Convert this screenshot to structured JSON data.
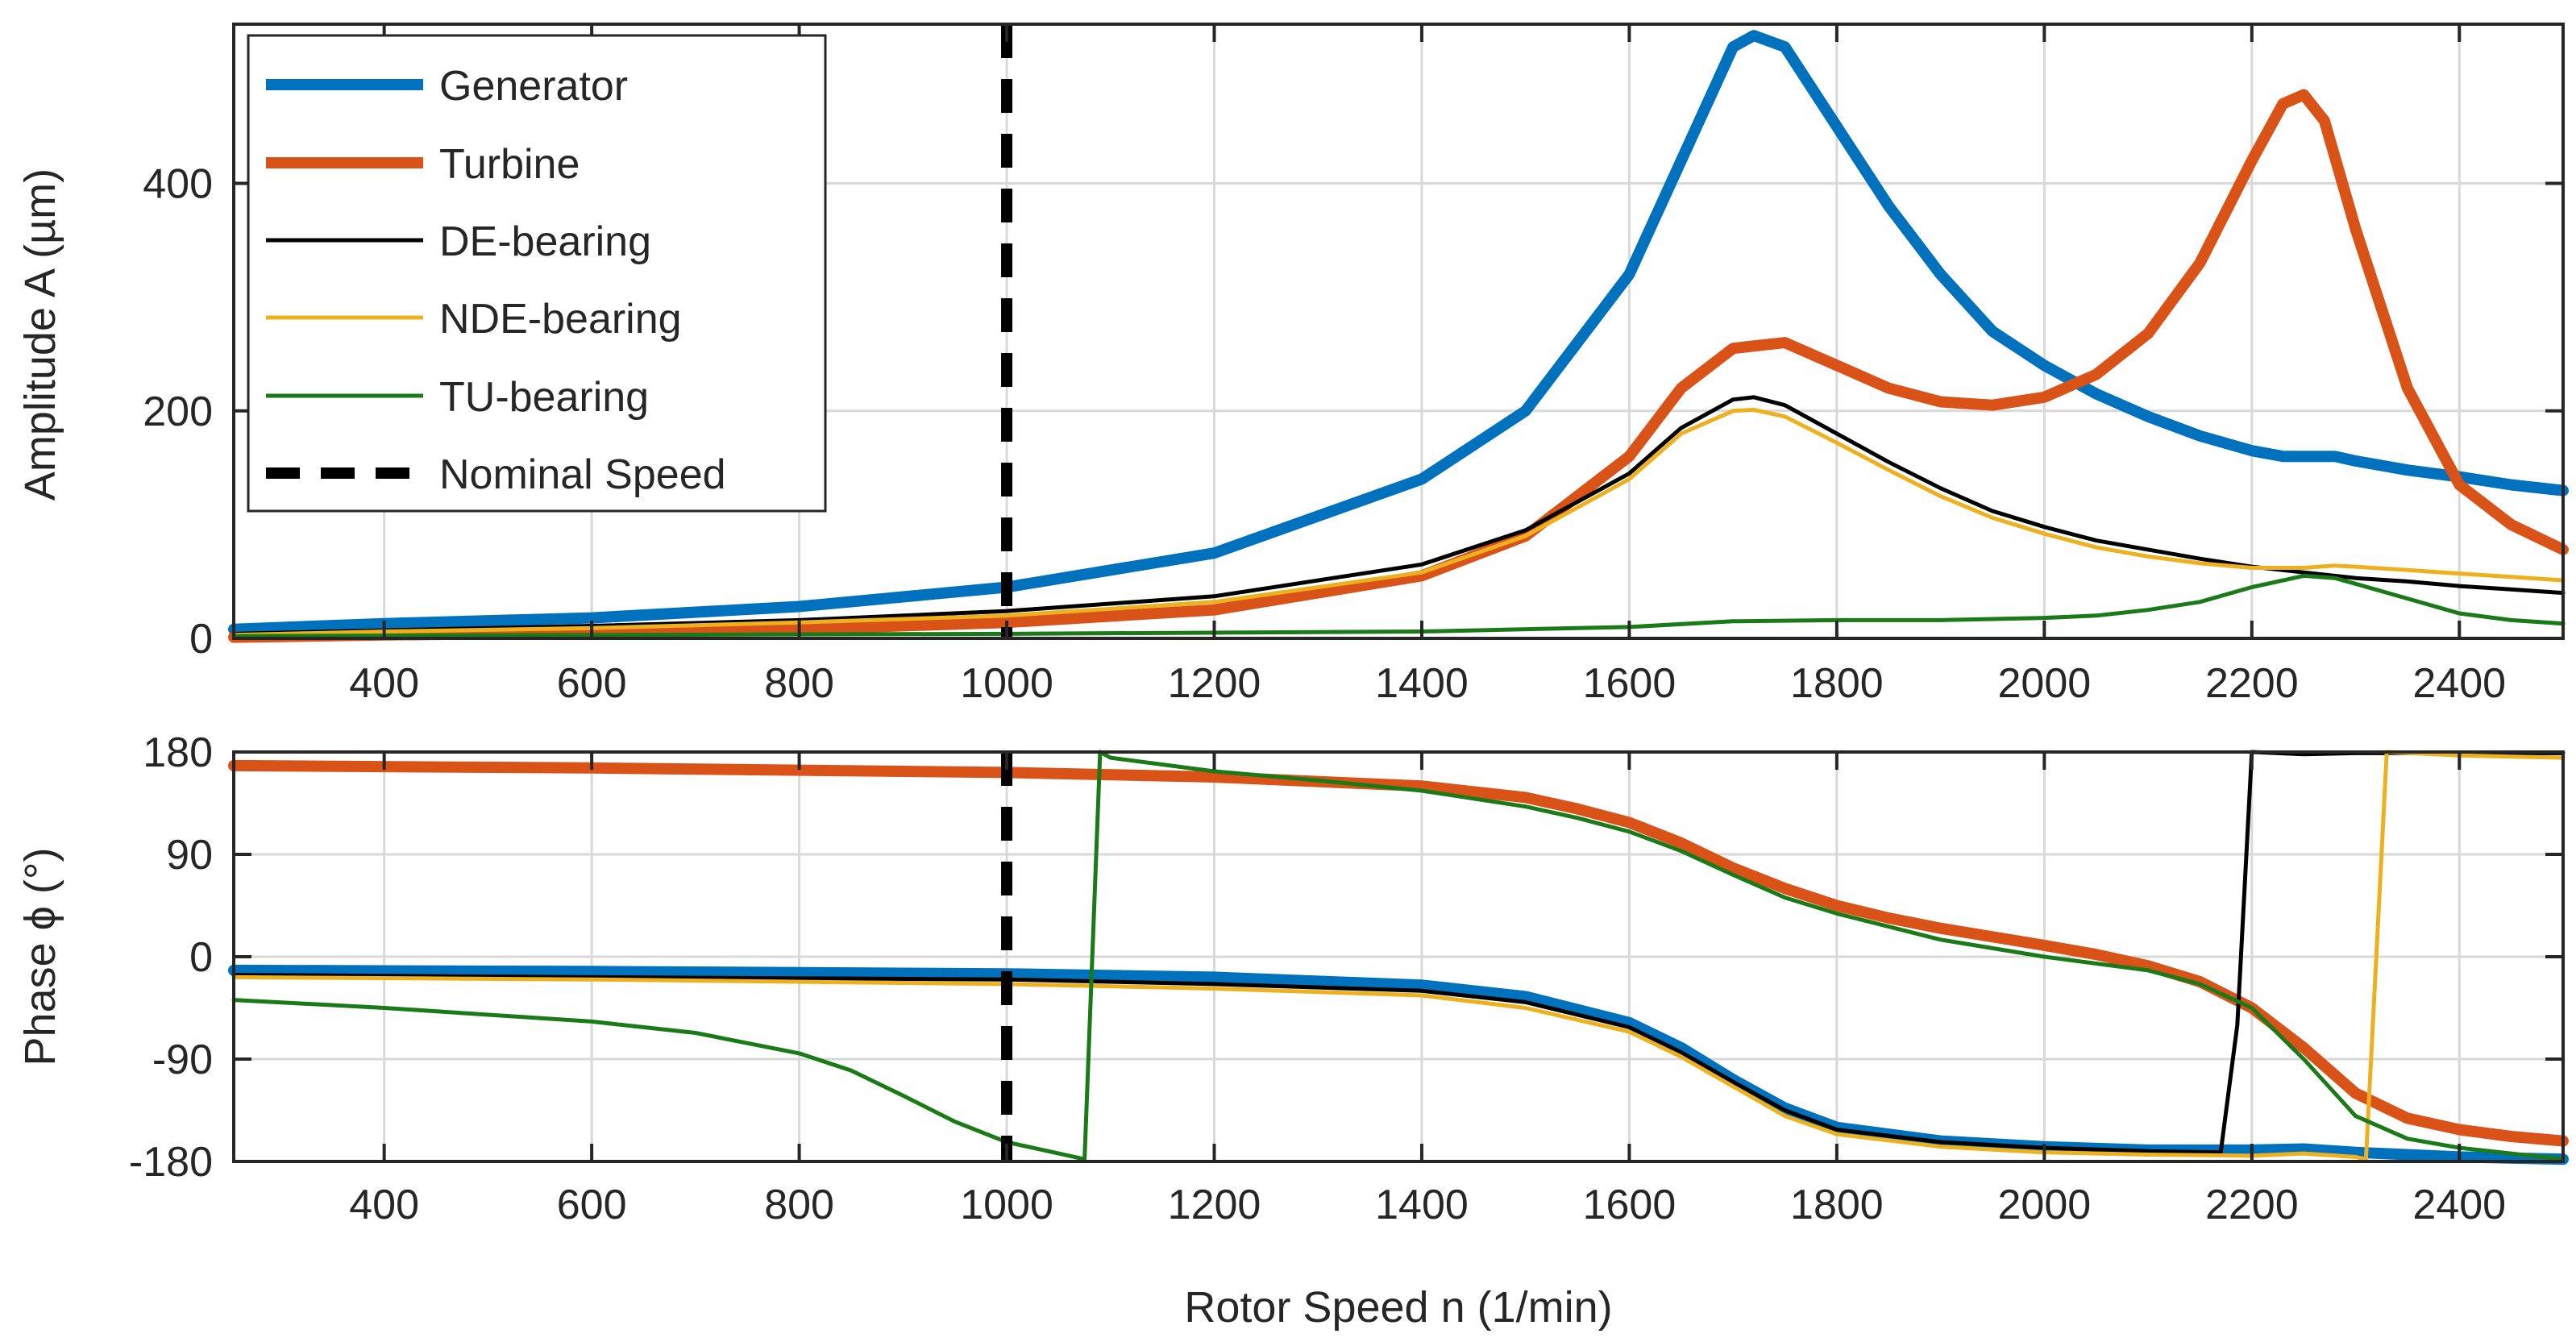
{
  "chart_data": [
    {
      "type": "line",
      "panel": "amplitude",
      "ylabel": "Amplitude A (µm)",
      "xlim": [
        255,
        2500
      ],
      "ylim": [
        0,
        540
      ],
      "xticks": [
        400,
        600,
        800,
        1000,
        1200,
        1400,
        1600,
        1800,
        2000,
        2200,
        2400
      ],
      "yticks": [
        0,
        200,
        400
      ],
      "grid": true,
      "legend_position": "top-left",
      "series": [
        {
          "name": "Generator",
          "color": "#0072BD",
          "width": "thick",
          "x": [
            255,
            400,
            600,
            800,
            1000,
            1200,
            1400,
            1500,
            1600,
            1650,
            1700,
            1720,
            1750,
            1800,
            1850,
            1900,
            1950,
            2000,
            2050,
            2100,
            2150,
            2200,
            2230,
            2280,
            2300,
            2350,
            2400,
            2450,
            2500
          ],
          "y": [
            8,
            13,
            18,
            28,
            45,
            75,
            140,
            200,
            320,
            420,
            520,
            530,
            520,
            450,
            380,
            320,
            270,
            240,
            215,
            195,
            178,
            165,
            160,
            160,
            156,
            148,
            142,
            135,
            130
          ]
        },
        {
          "name": "Turbine",
          "color": "#D95319",
          "width": "thick",
          "x": [
            255,
            400,
            600,
            800,
            1000,
            1200,
            1400,
            1500,
            1600,
            1650,
            1700,
            1750,
            1800,
            1850,
            1900,
            1950,
            2000,
            2050,
            2100,
            2150,
            2200,
            2230,
            2250,
            2270,
            2300,
            2350,
            2400,
            2450,
            2500
          ],
          "y": [
            1,
            3,
            5,
            8,
            14,
            25,
            55,
            90,
            160,
            220,
            255,
            260,
            240,
            220,
            208,
            205,
            212,
            232,
            268,
            330,
            420,
            470,
            478,
            455,
            360,
            220,
            135,
            100,
            78
          ]
        },
        {
          "name": "DE-bearing",
          "color": "#000000",
          "width": "thin",
          "x": [
            255,
            400,
            600,
            800,
            1000,
            1200,
            1400,
            1500,
            1600,
            1650,
            1700,
            1720,
            1750,
            1800,
            1850,
            1900,
            1950,
            2000,
            2050,
            2100,
            2150,
            2200,
            2250,
            2300,
            2350,
            2400,
            2450,
            2500
          ],
          "y": [
            4,
            7,
            11,
            16,
            24,
            37,
            65,
            95,
            145,
            185,
            210,
            212,
            205,
            180,
            155,
            132,
            112,
            98,
            86,
            78,
            70,
            63,
            58,
            53,
            50,
            46,
            43,
            40
          ]
        },
        {
          "name": "NDE-bearing",
          "color": "#EDB120",
          "width": "thin",
          "x": [
            255,
            400,
            600,
            800,
            1000,
            1200,
            1400,
            1500,
            1600,
            1650,
            1700,
            1720,
            1750,
            1800,
            1850,
            1900,
            1950,
            2000,
            2050,
            2100,
            2150,
            2200,
            2250,
            2280,
            2300,
            2350,
            2400,
            2450,
            2500
          ],
          "y": [
            3,
            6,
            9,
            14,
            20,
            32,
            58,
            90,
            140,
            180,
            200,
            201,
            195,
            172,
            148,
            125,
            106,
            92,
            80,
            72,
            66,
            62,
            62,
            64,
            63,
            60,
            57,
            54,
            51
          ]
        },
        {
          "name": "TU-bearing",
          "color": "#1B7A18",
          "width": "thin",
          "x": [
            255,
            600,
            1000,
            1400,
            1600,
            1700,
            1800,
            1900,
            2000,
            2050,
            2100,
            2150,
            2200,
            2250,
            2280,
            2300,
            2350,
            2400,
            2450,
            2500
          ],
          "y": [
            2,
            3,
            4,
            6,
            10,
            15,
            16,
            16,
            18,
            20,
            25,
            32,
            45,
            55,
            53,
            48,
            35,
            22,
            16,
            13
          ]
        }
      ],
      "vertical_lines": [
        {
          "name": "Nominal Speed",
          "x": 1000,
          "color": "#000000",
          "style": "dashed"
        }
      ]
    },
    {
      "type": "line",
      "panel": "phase",
      "xlabel": "Rotor Speed n (1/min)",
      "ylabel": "Phase ϕ (°)",
      "xlim": [
        255,
        2500
      ],
      "ylim": [
        -180,
        180
      ],
      "xticks": [
        400,
        600,
        800,
        1000,
        1200,
        1400,
        1600,
        1800,
        2000,
        2200,
        2400
      ],
      "yticks": [
        -180,
        -90,
        0,
        90,
        180
      ],
      "grid": true,
      "series": [
        {
          "name": "Generator",
          "color": "#0072BD",
          "width": "thick",
          "x": [
            255,
            600,
            1000,
            1200,
            1400,
            1500,
            1600,
            1650,
            1700,
            1750,
            1800,
            1900,
            2000,
            2100,
            2200,
            2250,
            2300,
            2400,
            2500
          ],
          "y": [
            -12,
            -13,
            -15,
            -18,
            -25,
            -35,
            -58,
            -80,
            -108,
            -133,
            -150,
            -162,
            -167,
            -170,
            -170,
            -169,
            -172,
            -176,
            -178
          ]
        },
        {
          "name": "Turbine",
          "color": "#D95319",
          "width": "thick",
          "x": [
            255,
            600,
            1000,
            1200,
            1400,
            1500,
            1550,
            1600,
            1650,
            1700,
            1750,
            1800,
            1850,
            1900,
            2000,
            2050,
            2100,
            2150,
            2200,
            2250,
            2300,
            2350,
            2400,
            2450,
            2500
          ],
          "y": [
            168,
            166,
            162,
            158,
            150,
            140,
            130,
            118,
            100,
            78,
            60,
            45,
            34,
            25,
            10,
            2,
            -8,
            -22,
            -45,
            -80,
            -120,
            -142,
            -152,
            -158,
            -162
          ]
        },
        {
          "name": "DE-bearing",
          "color": "#000000",
          "width": "thin",
          "x": [
            255,
            600,
            1000,
            1200,
            1400,
            1500,
            1600,
            1650,
            1700,
            1750,
            1800,
            1900,
            2000,
            2100,
            2170,
            2186,
            2200,
            2250,
            2300,
            2400,
            2500
          ],
          "y": [
            -16,
            -18,
            -20,
            -24,
            -30,
            -40,
            -62,
            -84,
            -110,
            -135,
            -152,
            -163,
            -168,
            -171,
            -172,
            -60,
            180,
            178,
            179,
            179,
            179
          ]
        },
        {
          "name": "NDE-bearing",
          "color": "#EDB120",
          "width": "thin",
          "x": [
            255,
            600,
            1000,
            1200,
            1400,
            1500,
            1600,
            1650,
            1700,
            1750,
            1800,
            1900,
            2000,
            2100,
            2200,
            2250,
            2300,
            2310,
            2330,
            2400,
            2500
          ],
          "y": [
            -18,
            -20,
            -24,
            -28,
            -34,
            -45,
            -66,
            -88,
            -114,
            -140,
            -156,
            -167,
            -172,
            -174,
            -175,
            -173,
            -176,
            -178,
            180,
            177,
            175
          ]
        },
        {
          "name": "TU-bearing",
          "color": "#1B7A18",
          "width": "thin",
          "x": [
            255,
            400,
            600,
            700,
            800,
            850,
            900,
            950,
            1000,
            1050,
            1075,
            1090,
            1100,
            1200,
            1300,
            1400,
            1500,
            1550,
            1600,
            1650,
            1700,
            1750,
            1800,
            1900,
            2000,
            2100,
            2150,
            2200,
            2250,
            2300,
            2350,
            2400,
            2500
          ],
          "y": [
            -38,
            -45,
            -57,
            -67,
            -85,
            -100,
            -122,
            -145,
            -163,
            -173,
            -178,
            180,
            175,
            163,
            155,
            146,
            132,
            122,
            110,
            93,
            72,
            52,
            38,
            15,
            0,
            -12,
            -24,
            -45,
            -90,
            -140,
            -160,
            -168,
            -178
          ]
        }
      ],
      "vertical_lines": [
        {
          "name": "Nominal Speed",
          "x": 1000,
          "color": "#000000",
          "style": "dashed"
        }
      ]
    }
  ]
}
